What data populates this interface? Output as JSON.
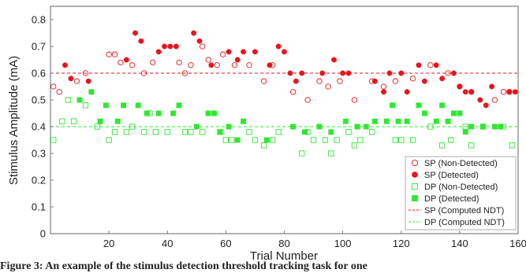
{
  "caption": "Figure 3: An example of the stimulus detection threshold tracking task for one",
  "chart_data": {
    "type": "scatter",
    "xlabel": "Trial Number",
    "ylabel": "Stimulus Amplitude (mA)",
    "xlim": [
      0,
      160
    ],
    "ylim": [
      0,
      0.85
    ],
    "xticks": [
      20,
      40,
      60,
      80,
      100,
      120,
      140,
      160
    ],
    "yticks": [
      0,
      0.1,
      0.2,
      0.3,
      0.4,
      0.5,
      0.6,
      0.7,
      0.8
    ],
    "grid": false,
    "legend_position": "bottom-right",
    "colors": {
      "sp": "#e8141c",
      "dp": "#2ee82e"
    },
    "series": [
      {
        "name": "SP (Non-Detected)",
        "marker": "circle-open",
        "points": [
          [
            1,
            0.55
          ],
          [
            3,
            0.53
          ],
          [
            9,
            0.57
          ],
          [
            12,
            0.6
          ],
          [
            20,
            0.67
          ],
          [
            22,
            0.67
          ],
          [
            24,
            0.64
          ],
          [
            28,
            0.63
          ],
          [
            32,
            0.6
          ],
          [
            35,
            0.64
          ],
          [
            44,
            0.64
          ],
          [
            46,
            0.6
          ],
          [
            48,
            0.63
          ],
          [
            52,
            0.7
          ],
          [
            54,
            0.65
          ],
          [
            57,
            0.63
          ],
          [
            59,
            0.67
          ],
          [
            63,
            0.63
          ],
          [
            68,
            0.63
          ],
          [
            73,
            0.57
          ],
          [
            76,
            0.63
          ],
          [
            83,
            0.53
          ],
          [
            88,
            0.5
          ],
          [
            92,
            0.57
          ],
          [
            95,
            0.55
          ],
          [
            99,
            0.57
          ],
          [
            104,
            0.5
          ],
          [
            110,
            0.57
          ],
          [
            114,
            0.55
          ],
          [
            118,
            0.57
          ],
          [
            124,
            0.58
          ],
          [
            130,
            0.63
          ],
          [
            136,
            0.6
          ],
          [
            140,
            0.55
          ],
          [
            144,
            0.53
          ],
          [
            152,
            0.5
          ],
          [
            155,
            0.53
          ],
          [
            157,
            0.53
          ]
        ]
      },
      {
        "name": "SP (Detected)",
        "marker": "circle-filled",
        "points": [
          [
            5,
            0.63
          ],
          [
            7,
            0.58
          ],
          [
            13,
            0.57
          ],
          [
            26,
            0.65
          ],
          [
            29,
            0.75
          ],
          [
            31,
            0.72
          ],
          [
            37,
            0.68
          ],
          [
            39,
            0.7
          ],
          [
            41,
            0.7
          ],
          [
            43,
            0.7
          ],
          [
            49,
            0.75
          ],
          [
            51,
            0.72
          ],
          [
            55,
            0.63
          ],
          [
            61,
            0.68
          ],
          [
            64,
            0.65
          ],
          [
            66,
            0.68
          ],
          [
            70,
            0.68
          ],
          [
            75,
            0.63
          ],
          [
            78,
            0.7
          ],
          [
            80,
            0.68
          ],
          [
            82,
            0.6
          ],
          [
            84,
            0.57
          ],
          [
            86,
            0.6
          ],
          [
            93,
            0.6
          ],
          [
            97,
            0.65
          ],
          [
            100,
            0.6
          ],
          [
            102,
            0.6
          ],
          [
            111,
            0.57
          ],
          [
            114,
            0.53
          ],
          [
            116,
            0.6
          ],
          [
            120,
            0.6
          ],
          [
            122,
            0.53
          ],
          [
            126,
            0.63
          ],
          [
            128,
            0.57
          ],
          [
            132,
            0.63
          ],
          [
            134,
            0.58
          ],
          [
            138,
            0.6
          ],
          [
            140,
            0.55
          ],
          [
            142,
            0.53
          ],
          [
            144,
            0.53
          ],
          [
            147,
            0.5
          ],
          [
            149,
            0.48
          ],
          [
            151,
            0.55
          ],
          [
            157,
            0.53
          ],
          [
            159,
            0.53
          ]
        ]
      },
      {
        "name": "DP (Non-Detected)",
        "marker": "square-open",
        "points": [
          [
            1,
            0.35
          ],
          [
            4,
            0.42
          ],
          [
            6,
            0.5
          ],
          [
            8,
            0.42
          ],
          [
            12,
            0.48
          ],
          [
            16,
            0.4
          ],
          [
            20,
            0.35
          ],
          [
            22,
            0.38
          ],
          [
            26,
            0.38
          ],
          [
            28,
            0.4
          ],
          [
            32,
            0.38
          ],
          [
            34,
            0.45
          ],
          [
            36,
            0.38
          ],
          [
            40,
            0.38
          ],
          [
            46,
            0.38
          ],
          [
            48,
            0.38
          ],
          [
            52,
            0.38
          ],
          [
            58,
            0.38
          ],
          [
            60,
            0.35
          ],
          [
            62,
            0.35
          ],
          [
            68,
            0.38
          ],
          [
            70,
            0.35
          ],
          [
            73,
            0.33
          ],
          [
            76,
            0.35
          ],
          [
            78,
            0.38
          ],
          [
            86,
            0.3
          ],
          [
            88,
            0.38
          ],
          [
            90,
            0.35
          ],
          [
            94,
            0.35
          ],
          [
            96,
            0.3
          ],
          [
            98,
            0.35
          ],
          [
            102,
            0.38
          ],
          [
            104,
            0.33
          ],
          [
            106,
            0.35
          ],
          [
            110,
            0.38
          ],
          [
            118,
            0.35
          ],
          [
            120,
            0.35
          ],
          [
            124,
            0.35
          ],
          [
            130,
            0.4
          ],
          [
            134,
            0.33
          ],
          [
            137,
            0.35
          ],
          [
            142,
            0.4
          ],
          [
            144,
            0.33
          ],
          [
            148,
            0.4
          ],
          [
            155,
            0.4
          ],
          [
            158,
            0.33
          ]
        ]
      },
      {
        "name": "DP (Detected)",
        "marker": "square-filled",
        "points": [
          [
            10,
            0.5
          ],
          [
            14,
            0.53
          ],
          [
            17,
            0.42
          ],
          [
            19,
            0.48
          ],
          [
            23,
            0.42
          ],
          [
            25,
            0.48
          ],
          [
            30,
            0.48
          ],
          [
            33,
            0.45
          ],
          [
            37,
            0.45
          ],
          [
            42,
            0.45
          ],
          [
            44,
            0.48
          ],
          [
            50,
            0.4
          ],
          [
            54,
            0.45
          ],
          [
            56,
            0.45
          ],
          [
            58,
            0.38
          ],
          [
            61,
            0.4
          ],
          [
            64,
            0.35
          ],
          [
            66,
            0.42
          ],
          [
            74,
            0.35
          ],
          [
            83,
            0.4
          ],
          [
            87,
            0.38
          ],
          [
            92,
            0.4
          ],
          [
            96,
            0.38
          ],
          [
            101,
            0.42
          ],
          [
            105,
            0.4
          ],
          [
            108,
            0.4
          ],
          [
            111,
            0.42
          ],
          [
            115,
            0.42
          ],
          [
            117,
            0.48
          ],
          [
            119,
            0.42
          ],
          [
            122,
            0.42
          ],
          [
            126,
            0.48
          ],
          [
            128,
            0.45
          ],
          [
            132,
            0.42
          ],
          [
            134,
            0.48
          ],
          [
            136,
            0.42
          ],
          [
            138,
            0.45
          ],
          [
            140,
            0.45
          ],
          [
            142,
            0.38
          ],
          [
            144,
            0.4
          ],
          [
            148,
            0.4
          ],
          [
            152,
            0.4
          ],
          [
            154,
            0.4
          ]
        ]
      },
      {
        "name": "SP (Computed NDT)",
        "marker": "dashed-line",
        "y": 0.6
      },
      {
        "name": "DP (Computed NDT)",
        "marker": "dashed-line",
        "y": 0.4
      }
    ]
  }
}
